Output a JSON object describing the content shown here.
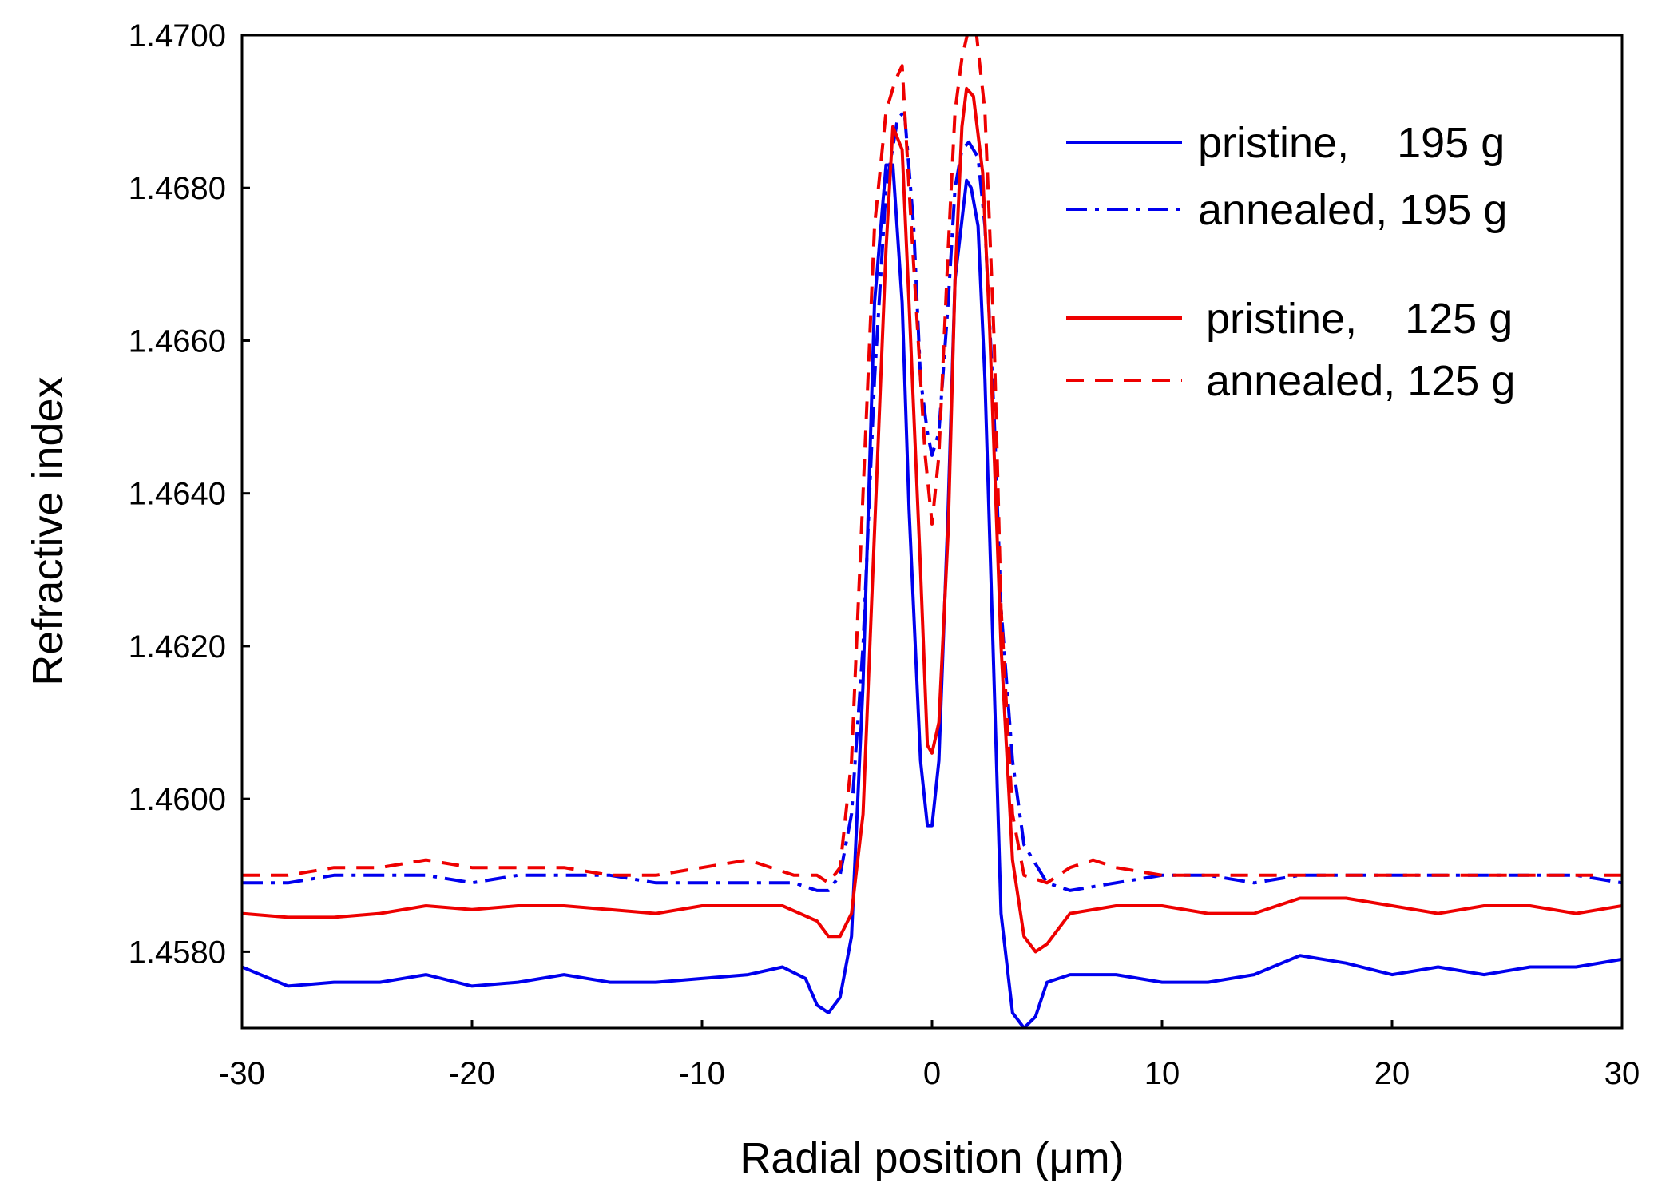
{
  "chart_data": {
    "type": "line",
    "title": "",
    "xlabel": "Radial position (μm)",
    "ylabel": "Refractive index",
    "xlim": [
      -30,
      30
    ],
    "ylim": [
      1.457,
      1.47
    ],
    "xticks": [
      -30,
      -20,
      -10,
      0,
      10,
      20,
      30
    ],
    "xtick_labels": [
      "-30",
      "-20",
      "-10",
      "0",
      "10",
      "20",
      "30"
    ],
    "yticks": [
      1.458,
      1.46,
      1.462,
      1.464,
      1.466,
      1.468,
      1.47
    ],
    "ytick_labels": [
      "1.4580",
      "1.4600",
      "1.4620",
      "1.4640",
      "1.4660",
      "1.4680",
      "1.4700"
    ],
    "grid": false,
    "legend_position": "top-right",
    "legend": [
      {
        "label": "pristine,    195 g",
        "series": 0
      },
      {
        "label": "annealed, 195 g",
        "series": 1
      },
      {
        "label": "pristine,    125 g",
        "series": 2
      },
      {
        "label": "annealed, 125 g",
        "series": 3
      }
    ],
    "series": [
      {
        "name": "pristine, 195 g",
        "color": "#0000ee",
        "dash": "solid",
        "x": [
          -30,
          -28,
          -26,
          -24,
          -22,
          -20,
          -18,
          -16,
          -14,
          -12,
          -10,
          -8,
          -6.5,
          -5.5,
          -5,
          -4.5,
          -4,
          -3.5,
          -3,
          -2.5,
          -2,
          -1.7,
          -1.3,
          -1,
          -0.5,
          -0.2,
          0,
          0.3,
          0.7,
          1,
          1.5,
          1.7,
          2,
          2.3,
          2.7,
          3,
          3.5,
          4,
          4.5,
          5,
          6,
          8,
          10,
          12,
          14,
          16,
          18,
          20,
          22,
          24,
          26,
          28,
          30
        ],
        "y": [
          1.4578,
          1.45755,
          1.4576,
          1.4576,
          1.4577,
          1.45755,
          1.4576,
          1.4577,
          1.4576,
          1.4576,
          1.45765,
          1.4577,
          1.4578,
          1.45765,
          1.4573,
          1.4572,
          1.4574,
          1.4582,
          1.4615,
          1.4665,
          1.4683,
          1.4683,
          1.4665,
          1.4638,
          1.4605,
          1.45965,
          1.45965,
          1.4605,
          1.4638,
          1.4668,
          1.4681,
          1.468,
          1.4675,
          1.4655,
          1.4615,
          1.4585,
          1.4572,
          1.457,
          1.45715,
          1.4576,
          1.4577,
          1.4577,
          1.4576,
          1.4576,
          1.4577,
          1.45795,
          1.45785,
          1.4577,
          1.4578,
          1.4577,
          1.4578,
          1.4578,
          1.4579
        ]
      },
      {
        "name": "annealed, 195 g",
        "color": "#0000ee",
        "dash": "dashdot",
        "x": [
          -30,
          -28,
          -26,
          -24,
          -22,
          -20,
          -18,
          -16,
          -14,
          -12,
          -10,
          -8,
          -6,
          -5,
          -4.5,
          -4,
          -3.5,
          -3,
          -2.5,
          -2,
          -1.5,
          -1.2,
          -0.8,
          -0.5,
          -0.2,
          0,
          0.3,
          0.7,
          1,
          1.3,
          1.6,
          2,
          2.3,
          2.7,
          3,
          3.5,
          4,
          5,
          6,
          8,
          10,
          12,
          14,
          16,
          18,
          20,
          22,
          24,
          26,
          28,
          30
        ],
        "y": [
          1.4589,
          1.4589,
          1.459,
          1.459,
          1.459,
          1.4589,
          1.459,
          1.459,
          1.459,
          1.4589,
          1.4589,
          1.4589,
          1.4589,
          1.4588,
          1.4588,
          1.459,
          1.4598,
          1.462,
          1.4655,
          1.468,
          1.4689,
          1.469,
          1.4675,
          1.4655,
          1.4648,
          1.4645,
          1.4648,
          1.4665,
          1.468,
          1.4685,
          1.4686,
          1.4684,
          1.4675,
          1.465,
          1.4625,
          1.4605,
          1.4594,
          1.4589,
          1.4588,
          1.4589,
          1.459,
          1.459,
          1.4589,
          1.459,
          1.459,
          1.459,
          1.459,
          1.459,
          1.459,
          1.459,
          1.4589
        ]
      },
      {
        "name": "pristine, 125 g",
        "color": "#ee0000",
        "dash": "solid",
        "x": [
          -30,
          -28,
          -26,
          -24,
          -22,
          -20,
          -18,
          -16,
          -14,
          -12,
          -10,
          -8,
          -6.5,
          -5,
          -4.5,
          -4,
          -3.5,
          -3,
          -2.5,
          -2,
          -1.7,
          -1.3,
          -1,
          -0.5,
          -0.2,
          0,
          0.3,
          0.7,
          1,
          1.3,
          1.5,
          1.8,
          2.2,
          2.5,
          3,
          3.5,
          4,
          4.5,
          5,
          6,
          8,
          10,
          12,
          14,
          16,
          18,
          20,
          22,
          24,
          26,
          28,
          30
        ],
        "y": [
          1.4585,
          1.45845,
          1.45845,
          1.4585,
          1.4586,
          1.45855,
          1.4586,
          1.4586,
          1.45855,
          1.4585,
          1.4586,
          1.4586,
          1.4586,
          1.4584,
          1.4582,
          1.4582,
          1.4585,
          1.4598,
          1.4635,
          1.4672,
          1.4688,
          1.4685,
          1.4665,
          1.463,
          1.4607,
          1.4606,
          1.461,
          1.4635,
          1.4668,
          1.4688,
          1.4693,
          1.4692,
          1.4682,
          1.4662,
          1.462,
          1.4592,
          1.4582,
          1.458,
          1.4581,
          1.4585,
          1.4586,
          1.4586,
          1.4585,
          1.4585,
          1.4587,
          1.4587,
          1.4586,
          1.4585,
          1.4586,
          1.4586,
          1.4585,
          1.4586
        ]
      },
      {
        "name": "annealed, 125 g",
        "color": "#ee0000",
        "dash": "dashed",
        "x": [
          -30,
          -28,
          -26,
          -24,
          -22,
          -20,
          -18,
          -16,
          -14,
          -12,
          -10,
          -8,
          -6,
          -5,
          -4.5,
          -4,
          -3.5,
          -3,
          -2.5,
          -2,
          -1.6,
          -1.3,
          -1,
          -0.5,
          -0.3,
          0,
          0.3,
          0.7,
          1,
          1.3,
          1.6,
          1.9,
          2.3,
          2.7,
          3,
          3.5,
          4,
          5,
          6,
          7,
          8,
          10,
          12,
          14,
          16,
          18,
          20,
          22,
          24,
          26,
          28,
          30
        ],
        "y": [
          1.459,
          1.459,
          1.4591,
          1.4591,
          1.4592,
          1.4591,
          1.4591,
          1.4591,
          1.459,
          1.459,
          1.4591,
          1.4592,
          1.459,
          1.459,
          1.4589,
          1.4591,
          1.4605,
          1.464,
          1.4675,
          1.469,
          1.4694,
          1.4696,
          1.468,
          1.4655,
          1.4645,
          1.4636,
          1.4645,
          1.4672,
          1.469,
          1.4697,
          1.4701,
          1.4701,
          1.469,
          1.466,
          1.4625,
          1.4598,
          1.459,
          1.4589,
          1.4591,
          1.4592,
          1.4591,
          1.459,
          1.459,
          1.459,
          1.459,
          1.459,
          1.459,
          1.459,
          1.459,
          1.459,
          1.459,
          1.459
        ]
      }
    ]
  }
}
